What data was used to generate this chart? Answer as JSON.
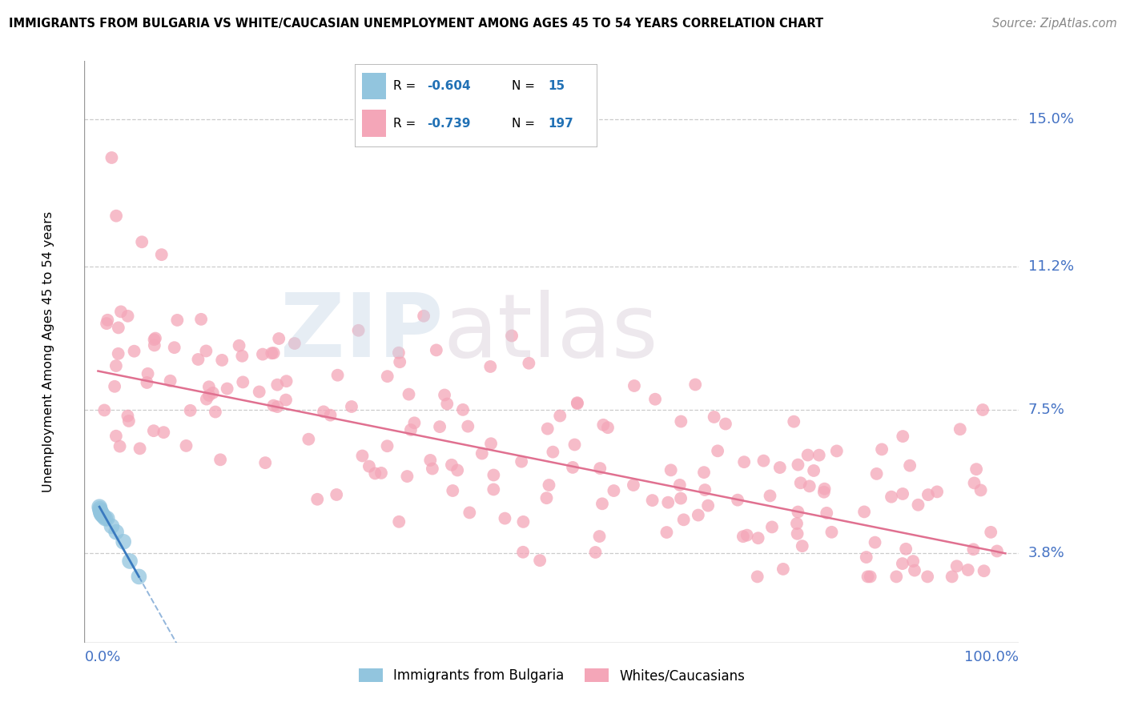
{
  "title": "IMMIGRANTS FROM BULGARIA VS WHITE/CAUCASIAN UNEMPLOYMENT AMONG AGES 45 TO 54 YEARS CORRELATION CHART",
  "source": "Source: ZipAtlas.com",
  "ylabel": "Unemployment Among Ages 45 to 54 years",
  "xlabel_blue": "0.0%",
  "xlabel_pink": "100.0%",
  "ytick_labels": [
    "3.8%",
    "7.5%",
    "11.2%",
    "15.0%"
  ],
  "ytick_values": [
    3.8,
    7.5,
    11.2,
    15.0
  ],
  "blue_R": -0.604,
  "blue_N": 15,
  "pink_R": -0.739,
  "pink_N": 197,
  "blue_color": "#92c5de",
  "pink_color": "#f4a6b8",
  "blue_line_color": "#3a7abf",
  "pink_line_color": "#e07090",
  "legend_label_blue": "Immigrants from Bulgaria",
  "legend_label_pink": "Whites/Caucasians"
}
